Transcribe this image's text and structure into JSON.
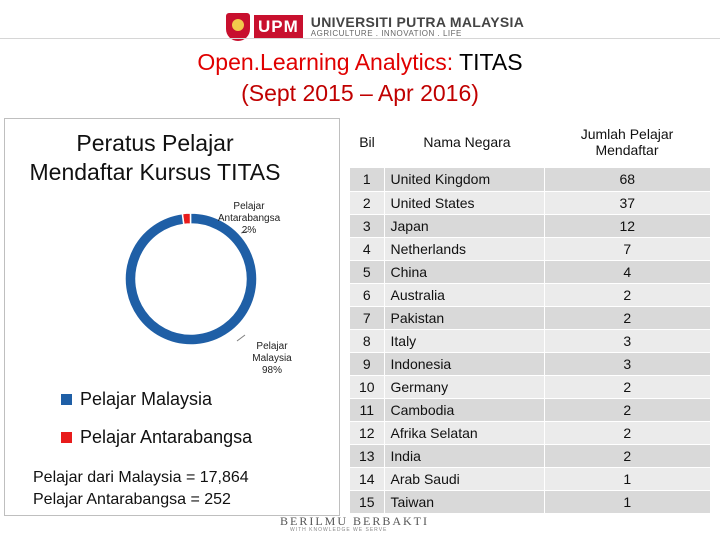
{
  "header": {
    "logo_abbr": "UPM",
    "university": "UNIVERSITI PUTRA MALAYSIA",
    "tagline": "AGRICULTURE . INNOVATION . LIFE"
  },
  "title": {
    "red_part": "Open.Learning Analytics:",
    "dark_part": " TITAS",
    "subtitle": "(Sept 2015 – Apr 2016)"
  },
  "chart_data": {
    "type": "pie",
    "title_line1": "Peratus Pelajar",
    "title_line2": "Mendaftar Kursus TITAS",
    "slices": [
      {
        "label_l1": "Pelajar",
        "label_l2": "Malaysia",
        "pct_label": "98%",
        "value": 98,
        "color": "#1f5fa6",
        "legend": "Pelajar Malaysia"
      },
      {
        "label_l1": "Pelajar",
        "label_l2": "Antarabangsa",
        "pct_label": "2%",
        "value": 2,
        "color": "#e81c1c",
        "legend": "Pelajar Antarabangsa"
      }
    ],
    "legend_placement": "bottom-left"
  },
  "totals": {
    "malaysia": "Pelajar dari Malaysia = 17,864",
    "international": "Pelajar Antarabangsa = 252"
  },
  "table": {
    "headers": {
      "bil": "Bil",
      "country": "Nama Negara",
      "count_l1": "Jumlah Pelajar",
      "count_l2": "Mendaftar"
    },
    "rows": [
      {
        "bil": "1",
        "country": "United Kingdom",
        "count": "68"
      },
      {
        "bil": "2",
        "country": "United States",
        "count": "37"
      },
      {
        "bil": "3",
        "country": "Japan",
        "count": "12"
      },
      {
        "bil": "4",
        "country": "Netherlands",
        "count": "7"
      },
      {
        "bil": "5",
        "country": "China",
        "count": "4"
      },
      {
        "bil": "6",
        "country": "Australia",
        "count": "2"
      },
      {
        "bil": "7",
        "country": "Pakistan",
        "count": "2"
      },
      {
        "bil": "8",
        "country": "Italy",
        "count": "3"
      },
      {
        "bil": "9",
        "country": "Indonesia",
        "count": "3"
      },
      {
        "bil": "10",
        "country": "Germany",
        "count": "2"
      },
      {
        "bil": "11",
        "country": "Cambodia",
        "count": "2"
      },
      {
        "bil": "12",
        "country": "Afrika Selatan",
        "count": "2"
      },
      {
        "bil": "13",
        "country": "India",
        "count": "2"
      },
      {
        "bil": "14",
        "country": "Arab Saudi",
        "count": "1"
      },
      {
        "bil": "15",
        "country": "Taiwan",
        "count": "1"
      }
    ]
  },
  "footer": {
    "motto": "BERILMU BERBAKTI",
    "motto_small": "WITH KNOWLEDGE WE SERVE"
  }
}
